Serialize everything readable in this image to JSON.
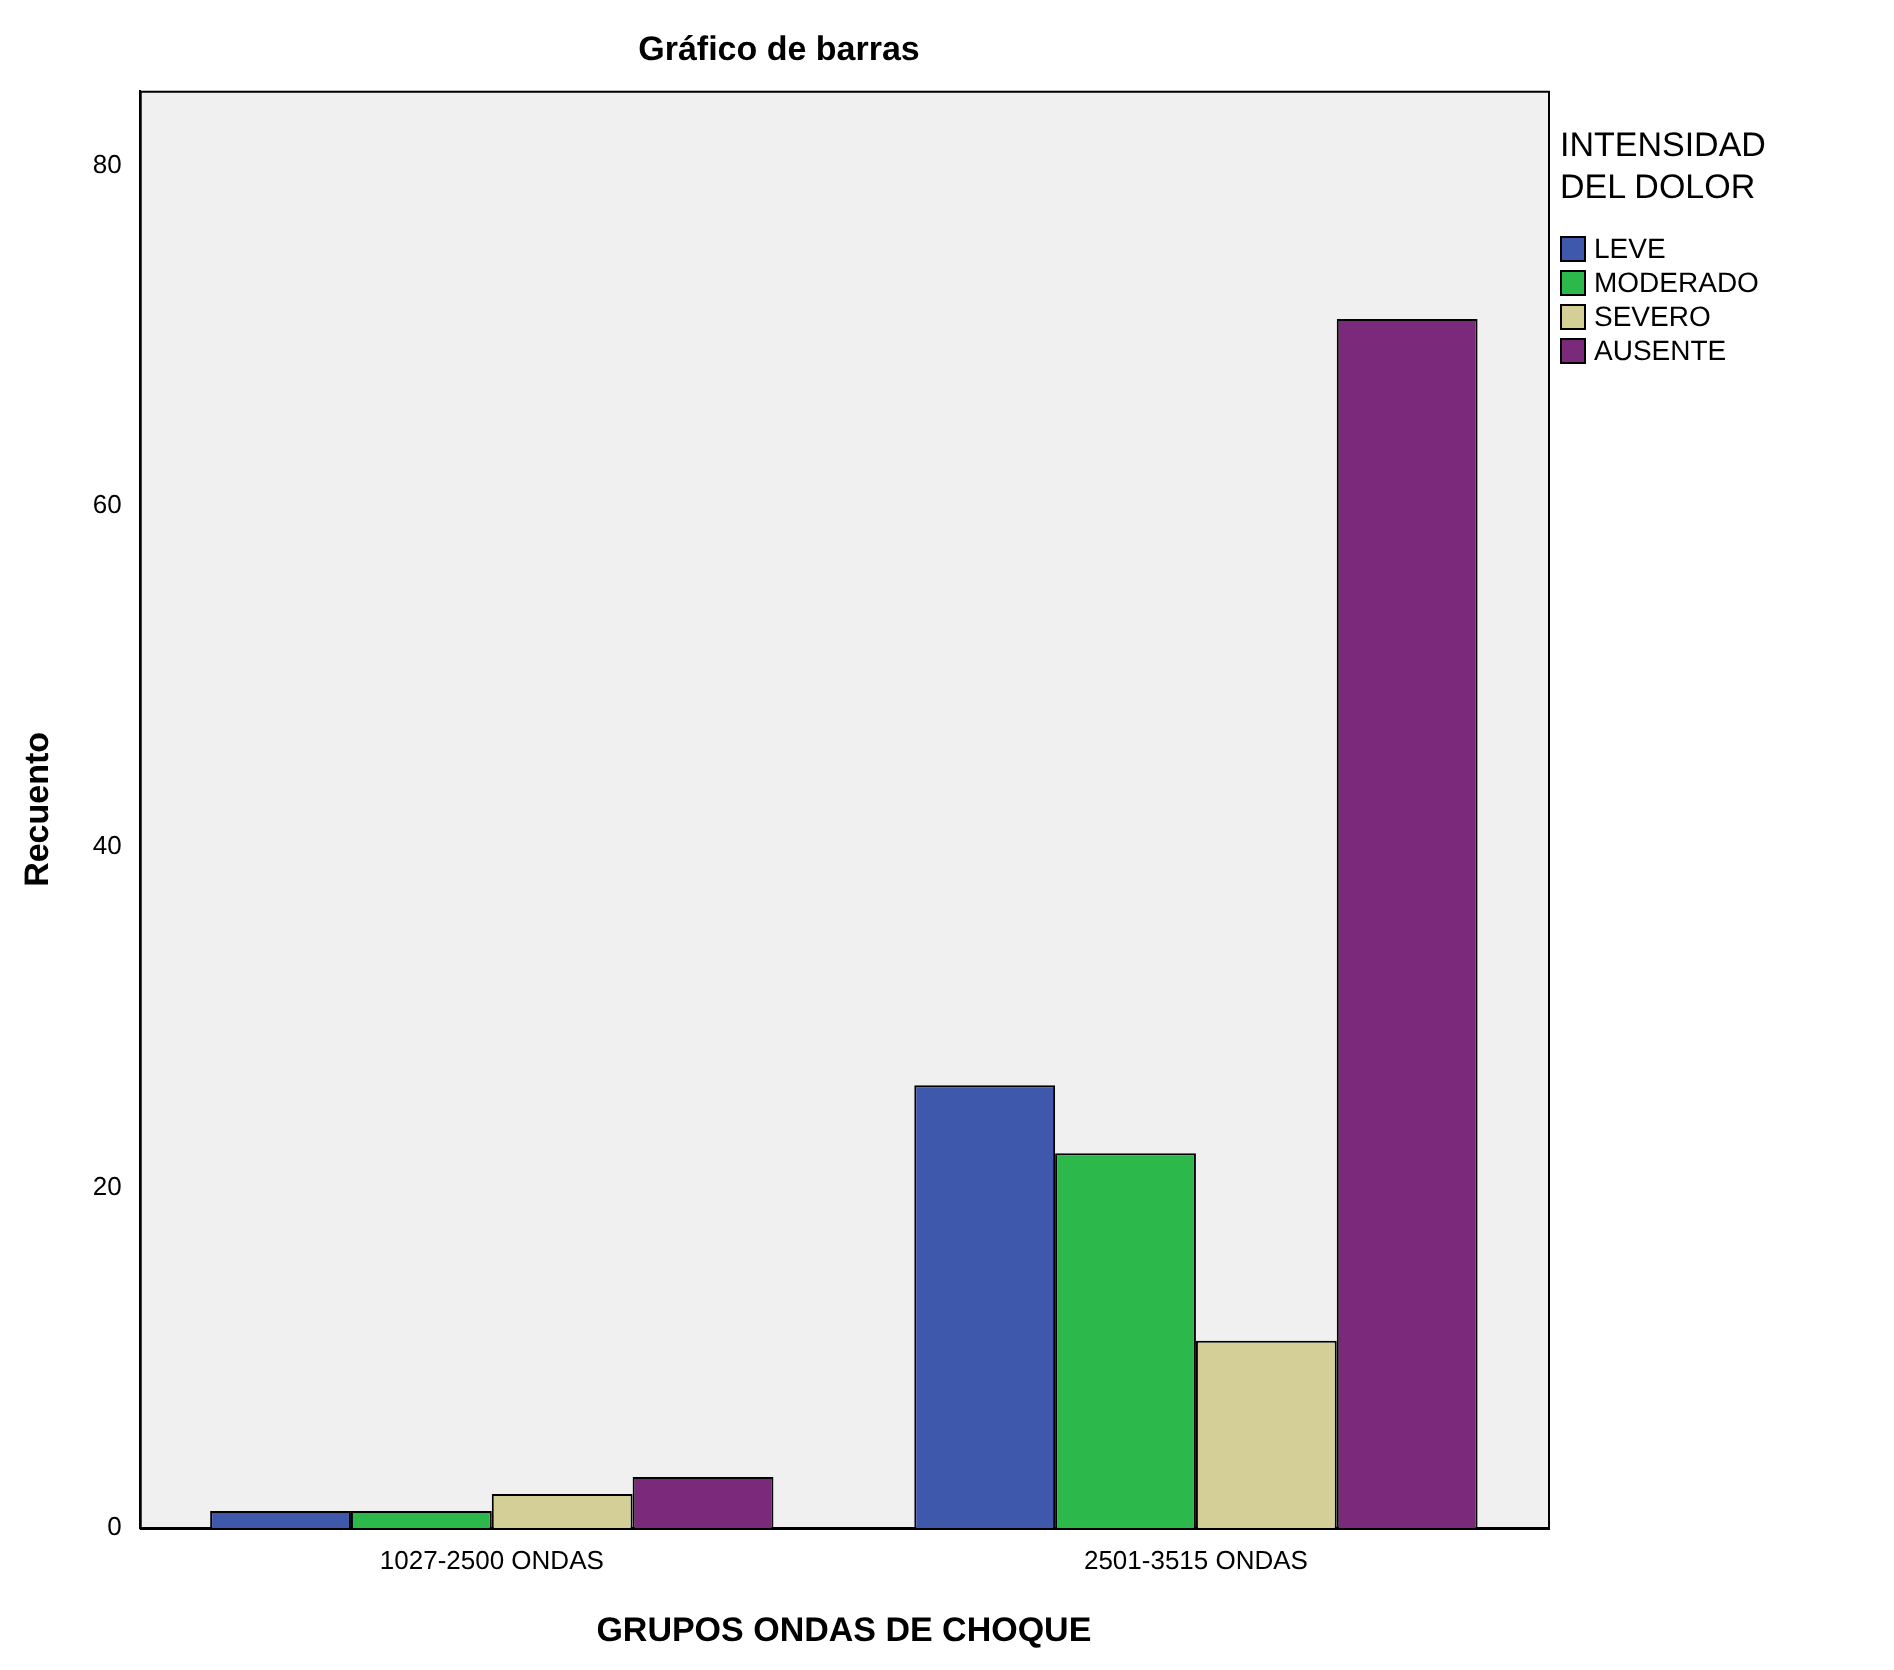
{
  "chart_data": {
    "type": "bar",
    "title": "Gráfico de barras",
    "xlabel": "GRUPOS ONDAS DE CHOQUE",
    "ylabel": "Recuento",
    "legend_title": "INTENSIDAD DEL DOLOR",
    "categories": [
      "1027-2500 ONDAS",
      "2501-3515 ONDAS"
    ],
    "series": [
      {
        "name": "LEVE",
        "color": "#3e58ac",
        "values": [
          1,
          26
        ]
      },
      {
        "name": "MODERADO",
        "color": "#2db84b",
        "values": [
          1,
          22
        ]
      },
      {
        "name": "SEVERO",
        "color": "#d4cf96",
        "values": [
          2,
          11
        ]
      },
      {
        "name": "AUSENTE",
        "color": "#7b2a7b",
        "values": [
          3,
          71
        ]
      }
    ],
    "ylim": [
      0,
      84.4
    ],
    "yticks": [
      0,
      20,
      40,
      60,
      80
    ],
    "grid": false,
    "legend": "top right"
  }
}
